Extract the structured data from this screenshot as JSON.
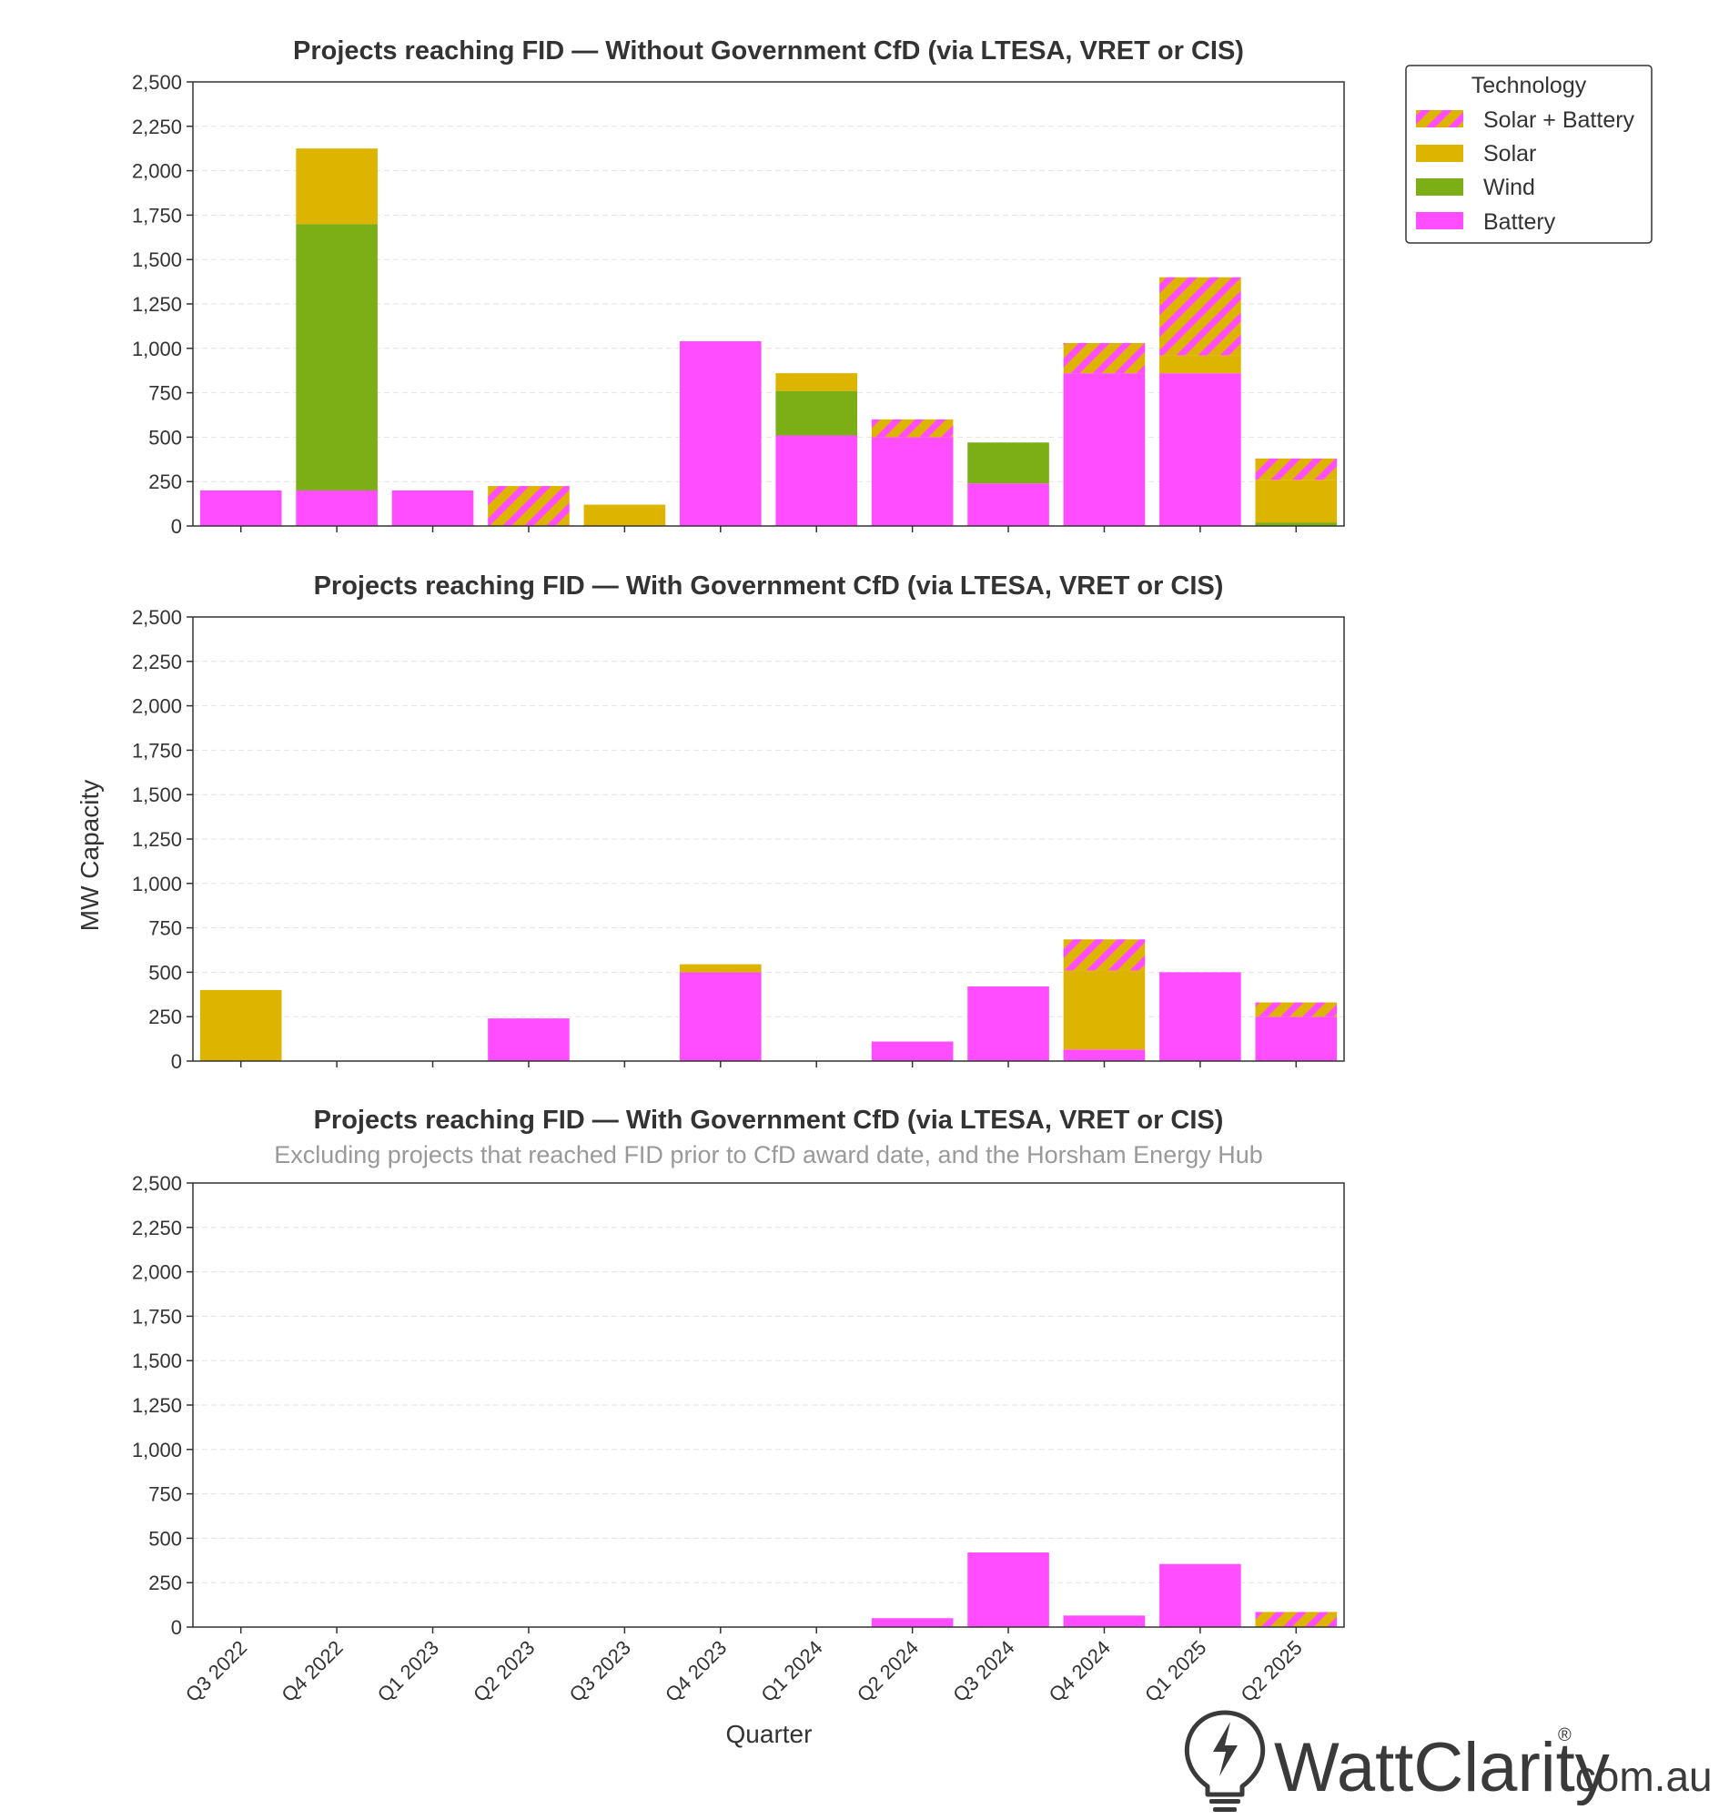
{
  "figure": {
    "ylabel": "MW Capacity",
    "xlabel": "Quarter"
  },
  "legend": {
    "title": "Technology",
    "items": [
      {
        "label": "Solar + Battery",
        "key": "solar_battery"
      },
      {
        "label": "Solar",
        "key": "solar"
      },
      {
        "label": "Wind",
        "key": "wind"
      },
      {
        "label": "Battery",
        "key": "battery"
      }
    ]
  },
  "colors": {
    "battery": "#ff4dff",
    "solar": "#ddb400",
    "wind": "#7cae16",
    "hatch_stripe": "#ff4dff",
    "hatch_base": "#ddb400"
  },
  "logo": {
    "text": "WattClarity",
    "suffix": ".com.au",
    "registered": "®",
    "icon": "lightbulb-bolt-icon"
  },
  "chart_data": [
    {
      "type": "bar",
      "stacked": true,
      "title": "Projects reaching FID — Without Government CfD (via LTESA, VRET or CIS)",
      "subtitle": "",
      "ylim": [
        0,
        2500
      ],
      "yticks": [
        "0",
        "250",
        "500",
        "750",
        "1,000",
        "1,250",
        "1,500",
        "1,750",
        "2,000",
        "2,250",
        "2,500"
      ],
      "categories": [
        "Q3 2022",
        "Q4 2022",
        "Q1 2023",
        "Q2 2023",
        "Q3 2023",
        "Q4 2023",
        "Q1 2024",
        "Q2 2024",
        "Q3 2024",
        "Q4 2024",
        "Q1 2025",
        "Q2 2025"
      ],
      "series": [
        {
          "name": "Battery",
          "key": "battery",
          "values": [
            200,
            200,
            200,
            0,
            0,
            1040,
            510,
            500,
            240,
            860,
            860,
            0
          ]
        },
        {
          "name": "Wind",
          "key": "wind",
          "values": [
            0,
            1500,
            0,
            0,
            0,
            0,
            250,
            0,
            230,
            0,
            0,
            20
          ]
        },
        {
          "name": "Solar",
          "key": "solar",
          "values": [
            0,
            425,
            0,
            0,
            120,
            0,
            100,
            0,
            0,
            0,
            100,
            240
          ]
        },
        {
          "name": "Solar + Battery",
          "key": "solar_battery",
          "values": [
            0,
            0,
            0,
            225,
            0,
            0,
            0,
            100,
            0,
            170,
            440,
            120
          ]
        }
      ]
    },
    {
      "type": "bar",
      "stacked": true,
      "title": "Projects reaching FID — With Government CfD (via LTESA, VRET or CIS)",
      "subtitle": "",
      "ylim": [
        0,
        2500
      ],
      "yticks": [
        "0",
        "250",
        "500",
        "750",
        "1,000",
        "1,250",
        "1,500",
        "1,750",
        "2,000",
        "2,250",
        "2,500"
      ],
      "categories": [
        "Q3 2022",
        "Q4 2022",
        "Q1 2023",
        "Q2 2023",
        "Q3 2023",
        "Q4 2023",
        "Q1 2024",
        "Q2 2024",
        "Q3 2024",
        "Q4 2024",
        "Q1 2025",
        "Q2 2025"
      ],
      "series": [
        {
          "name": "Battery",
          "key": "battery",
          "values": [
            0,
            0,
            0,
            240,
            0,
            500,
            0,
            110,
            420,
            65,
            500,
            250
          ]
        },
        {
          "name": "Wind",
          "key": "wind",
          "values": [
            0,
            0,
            0,
            0,
            0,
            0,
            0,
            0,
            0,
            0,
            0,
            0
          ]
        },
        {
          "name": "Solar",
          "key": "solar",
          "values": [
            400,
            0,
            0,
            0,
            0,
            45,
            0,
            0,
            0,
            445,
            0,
            0
          ]
        },
        {
          "name": "Solar + Battery",
          "key": "solar_battery",
          "values": [
            0,
            0,
            0,
            0,
            0,
            0,
            0,
            0,
            0,
            175,
            0,
            80
          ]
        }
      ]
    },
    {
      "type": "bar",
      "stacked": true,
      "title": "Projects reaching FID — With Government CfD (via LTESA, VRET or CIS)",
      "subtitle": "Excluding projects that reached FID prior to CfD award date, and the Horsham Energy Hub",
      "ylim": [
        0,
        2500
      ],
      "yticks": [
        "0",
        "250",
        "500",
        "750",
        "1,000",
        "1,250",
        "1,500",
        "1,750",
        "2,000",
        "2,250",
        "2,500"
      ],
      "categories": [
        "Q3 2022",
        "Q4 2022",
        "Q1 2023",
        "Q2 2023",
        "Q3 2023",
        "Q4 2023",
        "Q1 2024",
        "Q2 2024",
        "Q3 2024",
        "Q4 2024",
        "Q1 2025",
        "Q2 2025"
      ],
      "series": [
        {
          "name": "Battery",
          "key": "battery",
          "values": [
            0,
            0,
            0,
            0,
            0,
            0,
            0,
            50,
            420,
            65,
            355,
            0
          ]
        },
        {
          "name": "Wind",
          "key": "wind",
          "values": [
            0,
            0,
            0,
            0,
            0,
            0,
            0,
            0,
            0,
            0,
            0,
            0
          ]
        },
        {
          "name": "Solar",
          "key": "solar",
          "values": [
            0,
            0,
            0,
            0,
            0,
            0,
            0,
            0,
            0,
            0,
            0,
            0
          ]
        },
        {
          "name": "Solar + Battery",
          "key": "solar_battery",
          "values": [
            0,
            0,
            0,
            0,
            0,
            0,
            0,
            0,
            0,
            0,
            0,
            85
          ]
        }
      ]
    }
  ]
}
